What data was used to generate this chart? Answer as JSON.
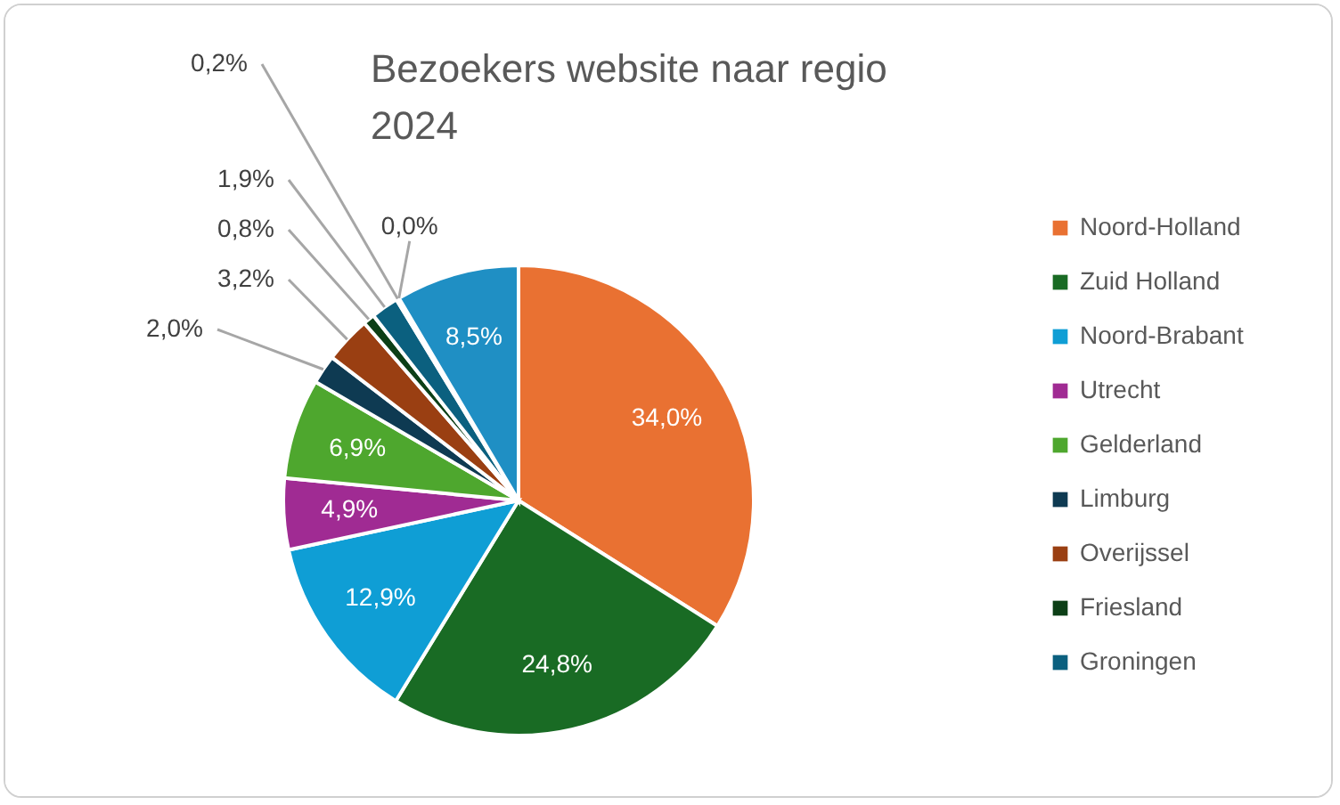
{
  "chart_data": {
    "type": "pie",
    "title": "Bezoekers website naar regio 2024",
    "categories": [
      "Noord-Holland",
      "Zuid Holland",
      "Noord-Brabant",
      "Utrecht",
      "Gelderland",
      "Limburg",
      "Overijssel",
      "Friesland",
      "Groningen",
      null,
      null,
      null
    ],
    "values": [
      34.0,
      24.8,
      12.9,
      4.9,
      6.9,
      2.0,
      3.2,
      0.8,
      1.9,
      0.2,
      0.0,
      8.5
    ],
    "value_labels": [
      "34,0%",
      "24,8%",
      "12,9%",
      "4,9%",
      "6,9%",
      "2,0%",
      "3,2%",
      "0,8%",
      "1,9%",
      "0,2%",
      "0,0%",
      "8,5%"
    ],
    "colors": [
      "#e97132",
      "#196b24",
      "#0f9ed5",
      "#a02b93",
      "#4ea72e",
      "#0e3a52",
      "#9a3f12",
      "#0c3f16",
      "#0b607f",
      "#6b2460",
      "#3b7d23",
      "#1f8fc4"
    ],
    "legend": "right"
  }
}
